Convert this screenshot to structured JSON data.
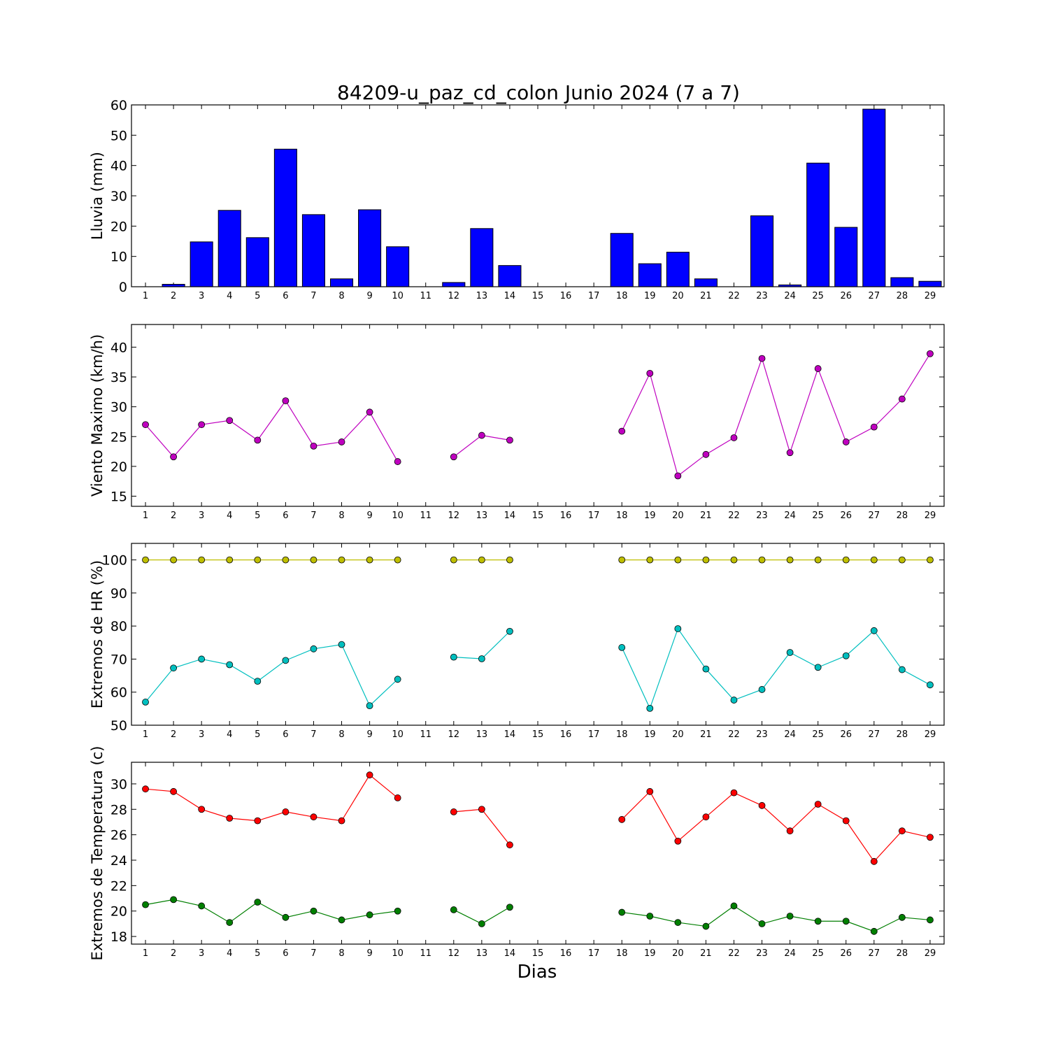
{
  "title": "84209-u_paz_cd_colon Junio 2024  (7 a 7)",
  "xlabel": "Dias",
  "colors": {
    "rain_bar": "#0000ff",
    "wind": "#bf00bf",
    "hr_max": "#bfbf00",
    "hr_min": "#00bfbf",
    "temp_max": "#ff0000",
    "temp_min": "#007f00"
  },
  "chart_data": [
    {
      "type": "bar",
      "ylabel": "Lluvia (mm)",
      "ylim": [
        0,
        60
      ],
      "yticks": [
        0,
        10,
        20,
        30,
        40,
        50,
        60
      ],
      "categories": [
        "1",
        "2",
        "3",
        "4",
        "5",
        "6",
        "7",
        "8",
        "9",
        "10",
        "11",
        "12",
        "13",
        "14",
        "15",
        "16",
        "17",
        "18",
        "19",
        "20",
        "21",
        "22",
        "23",
        "24",
        "25",
        "26",
        "27",
        "28",
        "29"
      ],
      "series": [
        {
          "color_key": "rain_bar",
          "values": [
            0,
            0.8,
            14.8,
            25.2,
            16.2,
            45.4,
            23.8,
            2.6,
            25.4,
            13.2,
            0,
            1.4,
            19.2,
            7.0,
            0,
            0,
            0,
            17.6,
            7.6,
            11.4,
            2.6,
            0,
            23.4,
            0.6,
            40.8,
            19.6,
            58.6,
            3.0,
            1.8
          ]
        }
      ]
    },
    {
      "type": "line",
      "ylabel": "Viento Maximo (km/h)",
      "ylim": [
        13.3,
        43.8
      ],
      "yticks": [
        15,
        20,
        25,
        30,
        35,
        40
      ],
      "categories": [
        "1",
        "2",
        "3",
        "4",
        "5",
        "6",
        "7",
        "8",
        "9",
        "10",
        "11",
        "12",
        "13",
        "14",
        "15",
        "16",
        "17",
        "18",
        "19",
        "20",
        "21",
        "22",
        "23",
        "24",
        "25",
        "26",
        "27",
        "28",
        "29"
      ],
      "series": [
        {
          "color_key": "wind",
          "values": [
            27.0,
            21.6,
            27.0,
            27.7,
            24.4,
            31.0,
            23.4,
            24.1,
            29.1,
            20.8,
            null,
            21.6,
            25.2,
            24.4,
            null,
            null,
            null,
            25.9,
            35.6,
            18.4,
            22.0,
            24.8,
            38.1,
            22.3,
            36.4,
            24.1,
            26.6,
            31.3,
            38.9
          ]
        }
      ]
    },
    {
      "type": "line",
      "ylabel": "Extremos de HR (%)",
      "ylim": [
        50,
        105
      ],
      "yticks": [
        50,
        60,
        70,
        80,
        90,
        100
      ],
      "categories": [
        "1",
        "2",
        "3",
        "4",
        "5",
        "6",
        "7",
        "8",
        "9",
        "10",
        "11",
        "12",
        "13",
        "14",
        "15",
        "16",
        "17",
        "18",
        "19",
        "20",
        "21",
        "22",
        "23",
        "24",
        "25",
        "26",
        "27",
        "28",
        "29"
      ],
      "series": [
        {
          "color_key": "hr_max",
          "values": [
            100,
            100,
            100,
            100,
            100,
            100,
            100,
            100,
            100,
            100,
            null,
            100,
            100,
            100,
            null,
            null,
            null,
            100,
            100,
            100,
            100,
            100,
            100,
            100,
            100,
            100,
            100,
            100,
            100
          ]
        },
        {
          "color_key": "hr_min",
          "values": [
            57,
            67.3,
            70,
            68.3,
            63.3,
            69.6,
            73.1,
            74.4,
            55.9,
            63.9,
            null,
            70.6,
            70.1,
            78.4,
            null,
            null,
            null,
            73.5,
            55.1,
            79.2,
            67.0,
            57.6,
            60.8,
            72.0,
            67.5,
            71.0,
            78.6,
            66.8,
            62.2
          ]
        }
      ]
    },
    {
      "type": "line",
      "ylabel": "Extremos de Temperatura (c)",
      "ylim": [
        17.4,
        31.7
      ],
      "yticks": [
        18,
        20,
        22,
        24,
        26,
        28,
        30
      ],
      "categories": [
        "1",
        "2",
        "3",
        "4",
        "5",
        "6",
        "7",
        "8",
        "9",
        "10",
        "11",
        "12",
        "13",
        "14",
        "15",
        "16",
        "17",
        "18",
        "19",
        "20",
        "21",
        "22",
        "23",
        "24",
        "25",
        "26",
        "27",
        "28",
        "29"
      ],
      "series": [
        {
          "color_key": "temp_max",
          "values": [
            29.6,
            29.4,
            28.0,
            27.3,
            27.1,
            27.8,
            27.4,
            27.1,
            30.7,
            28.9,
            null,
            27.8,
            28.0,
            25.2,
            null,
            null,
            null,
            27.2,
            29.4,
            25.5,
            27.4,
            29.3,
            28.3,
            26.3,
            28.4,
            27.1,
            23.9,
            26.3,
            25.8
          ]
        },
        {
          "color_key": "temp_min",
          "values": [
            20.5,
            20.9,
            20.4,
            19.1,
            20.7,
            19.5,
            20.0,
            19.3,
            19.7,
            20.0,
            null,
            20.1,
            19.0,
            20.3,
            null,
            null,
            null,
            19.9,
            19.6,
            19.1,
            18.8,
            20.4,
            19.0,
            19.6,
            19.2,
            19.2,
            18.4,
            19.5,
            19.3
          ]
        }
      ]
    }
  ]
}
